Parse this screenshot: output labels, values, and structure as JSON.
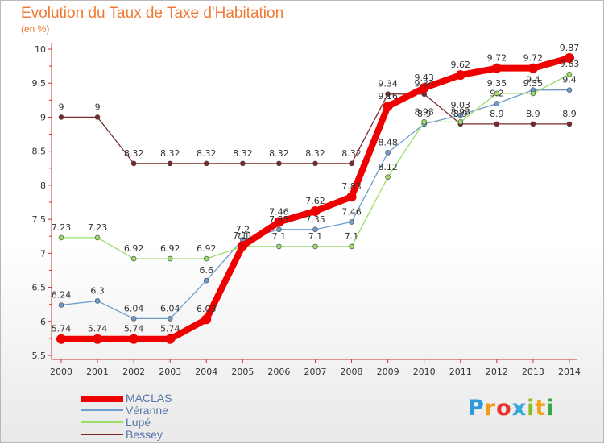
{
  "chart_data": {
    "type": "line",
    "title": "Evolution du Taux de Taxe d'Habitation",
    "unit_label": "(en %)",
    "x": [
      "2000",
      "2001",
      "2002",
      "2003",
      "2004",
      "2005",
      "2006",
      "2007",
      "2008",
      "2009",
      "2010",
      "2011",
      "2012",
      "2013",
      "2014"
    ],
    "y_ticks": [
      "5.5",
      "6",
      "6.5",
      "7",
      "7.5",
      "8",
      "8.5",
      "9",
      "9.5",
      "10"
    ],
    "ylim": [
      5.5,
      10
    ],
    "grid": false,
    "legend_position": "bottom-left",
    "series": [
      {
        "name": "MACLAS",
        "color": "#ee0000",
        "width": 8,
        "values": [
          5.74,
          5.74,
          5.74,
          5.74,
          6.03,
          7.11,
          7.46,
          7.62,
          7.83,
          9.16,
          9.43,
          9.62,
          9.72,
          9.72,
          9.87
        ],
        "labels": [
          "5.74",
          "5.74",
          "5.74",
          "5.74",
          "6.03",
          "7.11",
          "7.46",
          "7.62",
          "7.83",
          "9.16",
          "9.43",
          "9.62",
          "9.72",
          "9.72",
          "9.87"
        ]
      },
      {
        "name": "Véranne",
        "color": "#6e9ccc",
        "width": 1.3,
        "values": [
          6.24,
          6.3,
          6.04,
          6.04,
          6.6,
          7.2,
          7.35,
          7.35,
          7.46,
          8.48,
          8.9,
          9.03,
          9.2,
          9.4,
          9.4
        ],
        "labels": [
          "6.24",
          "6.3",
          "6.04",
          "6.04",
          "6.6",
          "7.2",
          "7.35",
          "7.35",
          "7.46",
          "8.48",
          "8.9",
          "9.03",
          "9.2",
          "9.4",
          "9.4"
        ]
      },
      {
        "name": "Lupé",
        "color": "#99dd66",
        "width": 1.3,
        "values": [
          7.23,
          7.23,
          6.92,
          6.92,
          6.92,
          7.1,
          7.1,
          7.1,
          7.1,
          8.12,
          8.93,
          8.93,
          9.35,
          9.35,
          9.63
        ],
        "labels": [
          "7.23",
          "7.23",
          "6.92",
          "6.92",
          "6.92",
          "7.1",
          "7.1",
          "7.1",
          "7.1",
          "8.12",
          "8.93",
          "8.93",
          "9.35",
          "9.35",
          "9.63"
        ]
      },
      {
        "name": "Bessey",
        "color": "#7a2a2a",
        "width": 1.3,
        "values": [
          9.0,
          9.0,
          8.32,
          8.32,
          8.32,
          8.32,
          8.32,
          8.32,
          8.32,
          9.34,
          9.34,
          8.9,
          8.9,
          8.9,
          8.9
        ],
        "labels": [
          "9",
          "9",
          "8.32",
          "8.32",
          "8.32",
          "8.32",
          "8.32",
          "8.32",
          "8.32",
          "9.34",
          "9.34",
          "8.9",
          "8.9",
          "8.9",
          "8.9"
        ]
      }
    ]
  },
  "legend": [
    {
      "label": "MACLAS",
      "color": "#ee0000",
      "thickness": 8
    },
    {
      "label": "Véranne",
      "color": "#6e9ccc",
      "thickness": 2
    },
    {
      "label": "Lupé",
      "color": "#99dd66",
      "thickness": 2
    },
    {
      "label": "Bessey",
      "color": "#7a2a2a",
      "thickness": 2
    }
  ],
  "logo": {
    "p": "P",
    "r": "r",
    "o": "o",
    "x": "x",
    "i": "i",
    "t": "t",
    "i2": "i"
  }
}
